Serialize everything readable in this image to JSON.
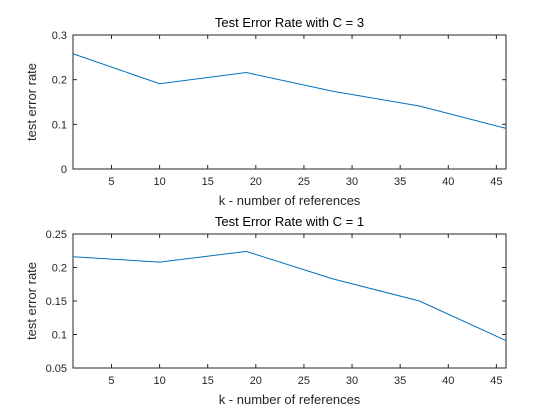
{
  "chart_data": [
    {
      "type": "line",
      "title": "Test Error Rate with C = 3",
      "xlabel": "k - number of references",
      "ylabel": "test error rate",
      "xlim": [
        1,
        46
      ],
      "ylim": [
        0,
        0.3
      ],
      "xticks": [
        5,
        10,
        15,
        20,
        25,
        30,
        35,
        40,
        45
      ],
      "xtick_labels": [
        "5",
        "10",
        "15",
        "20",
        "25",
        "30",
        "35",
        "40",
        "45"
      ],
      "yticks": [
        0,
        0.1,
        0.2,
        0.3
      ],
      "ytick_labels": [
        "0",
        "0.1",
        "0.2",
        "0.3"
      ],
      "grid": false,
      "series": [
        {
          "x": [
            1,
            10,
            19,
            28,
            37,
            46
          ],
          "values": [
            0.258,
            0.191,
            0.216,
            0.174,
            0.141,
            0.091
          ],
          "color": "#0072BD"
        }
      ]
    },
    {
      "type": "line",
      "title": "Test Error Rate with C = 1",
      "xlabel": "k - number of references",
      "ylabel": "test error rate",
      "xlim": [
        1,
        46
      ],
      "ylim": [
        0.05,
        0.25
      ],
      "xticks": [
        5,
        10,
        15,
        20,
        25,
        30,
        35,
        40,
        45
      ],
      "xtick_labels": [
        "5",
        "10",
        "15",
        "20",
        "25",
        "30",
        "35",
        "40",
        "45"
      ],
      "yticks": [
        0.05,
        0.1,
        0.15,
        0.2,
        0.25
      ],
      "ytick_labels": [
        "0.05",
        "0.1",
        "0.15",
        "0.2",
        "0.25"
      ],
      "grid": false,
      "series": [
        {
          "x": [
            1,
            10,
            19,
            28,
            37,
            46
          ],
          "values": [
            0.216,
            0.208,
            0.224,
            0.183,
            0.15,
            0.091
          ],
          "color": "#0072BD"
        }
      ]
    }
  ]
}
